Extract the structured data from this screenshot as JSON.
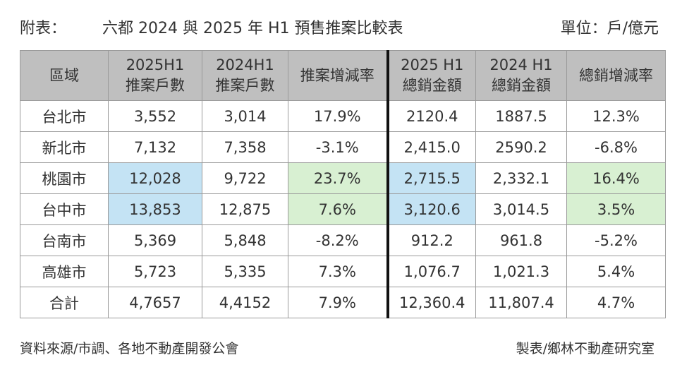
{
  "title": {
    "prefix": "附表：",
    "main": "六都  2024 與 2025 年  H1 預售推案比較表",
    "unit": "單位：戶/億元"
  },
  "table": {
    "headers": [
      [
        "區域"
      ],
      [
        "2025H1",
        "推案戶數"
      ],
      [
        "2024H1",
        "推案戶數"
      ],
      [
        "推案增減率"
      ],
      [
        "2025 H1",
        "總銷金額"
      ],
      [
        "2024 H1",
        "總銷金額"
      ],
      [
        "總銷增減率"
      ]
    ],
    "rows": [
      [
        "台北市",
        "3,552",
        "3,014",
        "17.9%",
        "2120.4",
        "1887.5",
        "12.3%"
      ],
      [
        "新北市",
        "7,132",
        "7,358",
        "-3.1%",
        "2,415.0",
        "2590.2",
        "-6.8%"
      ],
      [
        "桃園市",
        "12,028",
        "9,722",
        "23.7%",
        "2,715.5",
        "2,332.1",
        "16.4%"
      ],
      [
        "台中市",
        "13,853",
        "12,875",
        "7.6%",
        "3,120.6",
        "3,014.5",
        "3.5%"
      ],
      [
        "台南市",
        "5,369",
        "5,848",
        "-8.2%",
        "912.2",
        "961.8",
        "-5.2%"
      ],
      [
        "高雄市",
        "5,723",
        "5,335",
        "7.3%",
        "1,076.7",
        "1,021.3",
        "5.4%"
      ],
      [
        "合計",
        "4,7657",
        "4,4152",
        "7.9%",
        "12,360.4",
        "11,807.4",
        "4.7%"
      ]
    ]
  },
  "highlight_colors": {
    "blue": "#c4e3f4",
    "green": "#d8f0d2",
    "header": "#bfbfbf"
  },
  "footer": {
    "source": "資料來源/市調、各地不動產開發公會",
    "maker": "製表/鄉林不動產研究室"
  }
}
